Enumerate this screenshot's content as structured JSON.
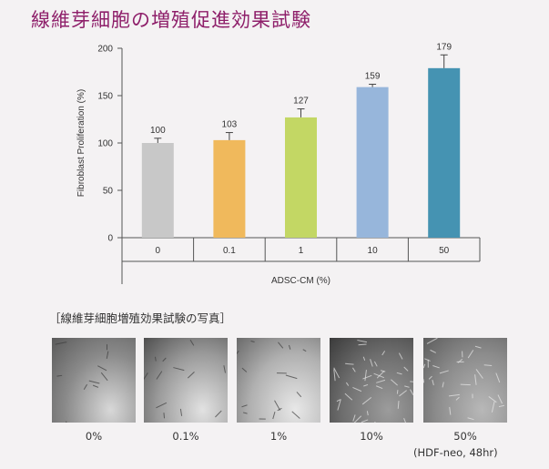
{
  "page": {
    "title": "線維芽細胞の増殖促進効果試験"
  },
  "chart_data": {
    "type": "bar",
    "title": "",
    "xlabel": "ADSC-CM (%)",
    "ylabel": "Fibroblast Proliferation (%)",
    "ylim": [
      0,
      200
    ],
    "yticks": [
      0,
      50,
      100,
      150,
      200
    ],
    "categories": [
      "0",
      "0.1",
      "1",
      "10",
      "50"
    ],
    "values": [
      100,
      103,
      127,
      159,
      179
    ],
    "value_labels": [
      "100",
      "103",
      "127",
      "159",
      "179"
    ],
    "errors": [
      5,
      8,
      9,
      3,
      14
    ],
    "colors": [
      "#c8c8c8",
      "#f0b95c",
      "#c3d764",
      "#97b6db",
      "#4593b2"
    ],
    "grid": false,
    "legend": "none"
  },
  "photos": {
    "heading": "［線維芽細胞増殖効果試験の写真］",
    "items": [
      {
        "caption": "0%"
      },
      {
        "caption": "0.1%"
      },
      {
        "caption": "1%"
      },
      {
        "caption": "10%"
      },
      {
        "caption": "50%"
      }
    ],
    "note": "(HDF-neo, 48hr)"
  }
}
